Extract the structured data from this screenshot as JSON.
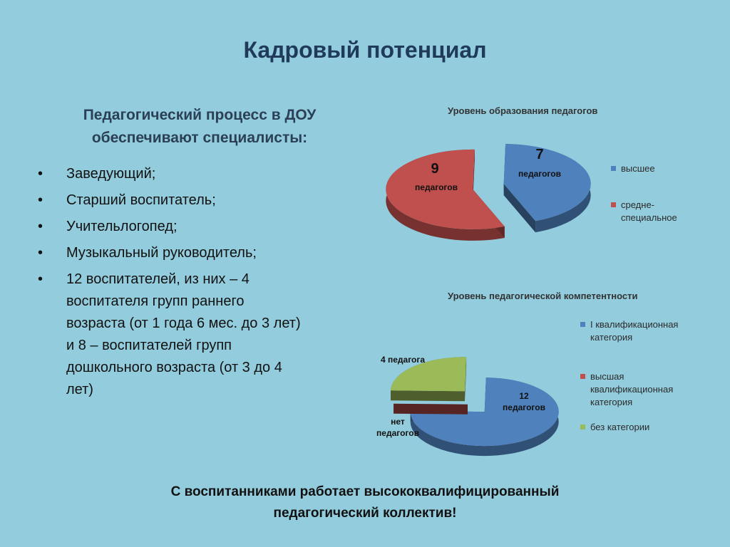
{
  "title": "Кадровый потенциал",
  "intro": {
    "line1": "Педагогический процесс в ДОУ",
    "line2": "обеспечивают специалисты:"
  },
  "bullets": [
    {
      "lines": [
        "Заведующий;"
      ]
    },
    {
      "lines": [
        "Старший воспитатель;"
      ]
    },
    {
      "lines": [
        "Учительлогопед;"
      ]
    },
    {
      "lines": [
        "Музыкальный руководитель;"
      ]
    },
    {
      "lines": [
        "12 воспитателей, из них – 4",
        "воспитателя групп раннего",
        "возраста (от 1 года 6 мес. до 3 лет)",
        "и 8 – воспитателей групп",
        "дошкольного возраста (от 3 до 4",
        "лет)"
      ]
    }
  ],
  "bullet_symbol": "•",
  "chart_data": [
    {
      "type": "pie",
      "title": "Уровень образования педагогов",
      "slices": [
        {
          "name": "высшее",
          "value": 7,
          "label_num": "7",
          "label_text": "педагогов",
          "color": "#4f81bd"
        },
        {
          "name": "средне-специальное",
          "value": 9,
          "label_num": "9",
          "label_text": "педагогов",
          "color": "#c0504d"
        }
      ],
      "legend": [
        {
          "lines": [
            "высшее"
          ],
          "color": "#4f81bd"
        },
        {
          "lines": [
            "средне-",
            "специальное"
          ],
          "color": "#c0504d"
        }
      ],
      "legend_position": "right",
      "style": "3d-exploded"
    },
    {
      "type": "pie",
      "title": "Уровень педагогической компетентности",
      "slices": [
        {
          "name": "I квалификационная категория",
          "value": 12,
          "label": "12\nпедагогов",
          "color": "#4f81bd"
        },
        {
          "name": "высшая квалификационная категория",
          "value": 0,
          "label": "нет\nпедагогов",
          "color": "#c0504d"
        },
        {
          "name": "без категории",
          "value": 4,
          "label": "4 педагога",
          "color": "#9bbb59"
        }
      ],
      "label_lines": {
        "blue": [
          "12",
          "педагогов"
        ],
        "red": [
          "нет",
          "педагогов"
        ],
        "green": [
          "4 педагога"
        ]
      },
      "legend": [
        {
          "lines": [
            "I квалификационная",
            "категория"
          ],
          "color": "#4f81bd"
        },
        {
          "lines": [
            "высшая",
            "квалификационная",
            "категория"
          ],
          "color": "#c0504d"
        },
        {
          "lines": [
            "без категории"
          ],
          "color": "#9bbb59"
        }
      ],
      "legend_position": "right",
      "style": "3d-exploded"
    }
  ],
  "conclusion": {
    "line1": "С воспитанниками работает высококвалифицированный",
    "line2": "педагогический коллектив!"
  }
}
